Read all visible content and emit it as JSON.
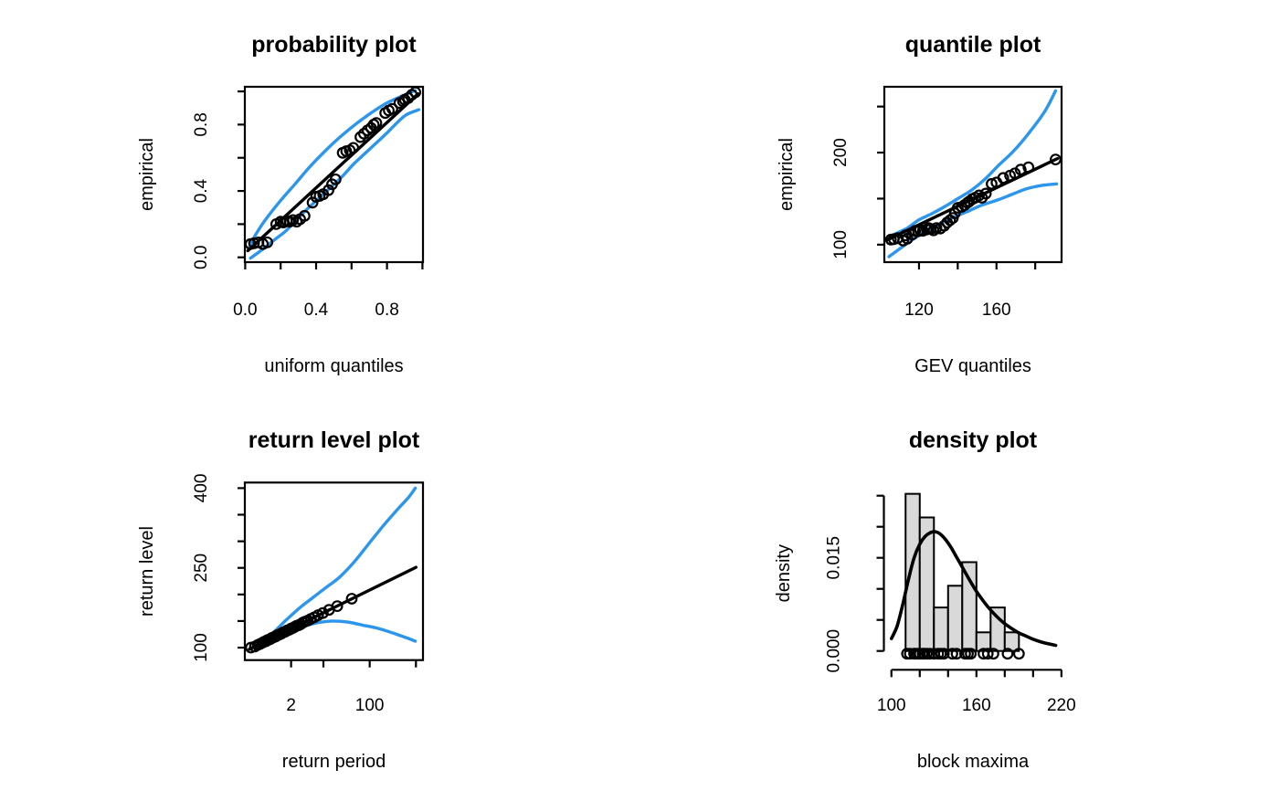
{
  "page": {
    "background": "#FFFFFF"
  },
  "styles": {
    "band_color": "#2B96EC",
    "data_color": "#000000",
    "hist_fill": "#D9D9D9",
    "hist_stroke": "#000000",
    "text_color": "#000000"
  },
  "chart_data": [
    {
      "id": "probability",
      "type": "scatter",
      "title": "probability plot",
      "xlabel": "uniform quantiles",
      "ylabel": "empirical",
      "xscale": "linear",
      "xlim": [
        -0.002,
        1.003
      ],
      "ylim": [
        -0.029,
        1.028
      ],
      "xticks": [
        [
          0,
          "0.0"
        ],
        [
          0.2,
          ""
        ],
        [
          0.4,
          "0.4"
        ],
        [
          0.6,
          ""
        ],
        [
          0.8,
          "0.8"
        ],
        [
          1,
          ""
        ]
      ],
      "yticks": [
        [
          0,
          "0.0"
        ],
        [
          0.2,
          ""
        ],
        [
          0.4,
          "0.4"
        ],
        [
          0.6,
          ""
        ],
        [
          0.8,
          "0.8"
        ],
        [
          1,
          ""
        ]
      ],
      "fit_line": [
        [
          0.015,
          0.04
        ],
        [
          0.975,
          0.985
        ]
      ],
      "upper_band": [
        [
          0.02,
          0.05
        ],
        [
          0.05,
          0.12
        ],
        [
          0.11,
          0.22
        ],
        [
          0.19,
          0.33
        ],
        [
          0.28,
          0.44
        ],
        [
          0.36,
          0.54
        ],
        [
          0.45,
          0.64
        ],
        [
          0.53,
          0.72
        ],
        [
          0.62,
          0.8
        ],
        [
          0.71,
          0.87
        ],
        [
          0.79,
          0.925
        ],
        [
          0.88,
          0.97
        ],
        [
          0.96,
          1.005
        ]
      ],
      "lower_band": [
        [
          0.03,
          -0.005
        ],
        [
          0.1,
          0.05
        ],
        [
          0.17,
          0.11
        ],
        [
          0.23,
          0.16
        ],
        [
          0.33,
          0.27
        ],
        [
          0.41,
          0.35
        ],
        [
          0.48,
          0.42
        ],
        [
          0.55,
          0.49
        ],
        [
          0.61,
          0.56
        ],
        [
          0.68,
          0.63
        ],
        [
          0.74,
          0.69
        ],
        [
          0.8,
          0.75
        ],
        [
          0.86,
          0.815
        ],
        [
          0.91,
          0.86
        ],
        [
          0.98,
          0.89
        ]
      ],
      "points": [
        [
          0.03,
          0.08
        ],
        [
          0.05,
          0.085
        ],
        [
          0.075,
          0.09
        ],
        [
          0.1,
          0.08
        ],
        [
          0.125,
          0.09
        ],
        [
          0.175,
          0.2
        ],
        [
          0.2,
          0.215
        ],
        [
          0.215,
          0.21
        ],
        [
          0.235,
          0.22
        ],
        [
          0.25,
          0.215
        ],
        [
          0.27,
          0.225
        ],
        [
          0.29,
          0.215
        ],
        [
          0.31,
          0.23
        ],
        [
          0.335,
          0.25
        ],
        [
          0.38,
          0.33
        ],
        [
          0.4,
          0.365
        ],
        [
          0.42,
          0.37
        ],
        [
          0.44,
          0.38
        ],
        [
          0.47,
          0.405
        ],
        [
          0.49,
          0.44
        ],
        [
          0.51,
          0.47
        ],
        [
          0.55,
          0.63
        ],
        [
          0.57,
          0.64
        ],
        [
          0.59,
          0.645
        ],
        [
          0.61,
          0.66
        ],
        [
          0.65,
          0.725
        ],
        [
          0.67,
          0.745
        ],
        [
          0.69,
          0.765
        ],
        [
          0.71,
          0.78
        ],
        [
          0.725,
          0.8
        ],
        [
          0.74,
          0.81
        ],
        [
          0.79,
          0.87
        ],
        [
          0.81,
          0.885
        ],
        [
          0.83,
          0.895
        ],
        [
          0.87,
          0.93
        ],
        [
          0.89,
          0.94
        ],
        [
          0.9,
          0.95
        ],
        [
          0.92,
          0.96
        ],
        [
          0.94,
          0.98
        ],
        [
          0.96,
          0.995
        ]
      ]
    },
    {
      "id": "quantile",
      "type": "scatter",
      "title": "quantile plot",
      "xlabel": "GEV quantiles",
      "ylabel": "empirical",
      "xscale": "linear",
      "xlim": [
        102.1,
        193.6
      ],
      "ylim": [
        81,
        271.5
      ],
      "xticks": [
        [
          120,
          "120"
        ],
        [
          140,
          ""
        ],
        [
          160,
          "160"
        ],
        [
          180,
          ""
        ]
      ],
      "yticks": [
        [
          100,
          "100"
        ],
        [
          150,
          ""
        ],
        [
          200,
          "200"
        ],
        [
          250,
          ""
        ]
      ],
      "fit_line": [
        [
          103.5,
          105
        ],
        [
          191.5,
          193.5
        ]
      ],
      "upper_band": [
        [
          103,
          106
        ],
        [
          108,
          112
        ],
        [
          114,
          118
        ],
        [
          120,
          127
        ],
        [
          126,
          133
        ],
        [
          133,
          141
        ],
        [
          140,
          150
        ],
        [
          147,
          159
        ],
        [
          154,
          171
        ],
        [
          161,
          186
        ],
        [
          169,
          202
        ],
        [
          177,
          222
        ],
        [
          185,
          245
        ],
        [
          190.5,
          267
        ]
      ],
      "lower_band": [
        [
          104.5,
          87
        ],
        [
          113,
          100
        ],
        [
          121,
          111.5
        ],
        [
          129,
          120.5
        ],
        [
          137,
          129
        ],
        [
          145,
          136
        ],
        [
          152.5,
          143
        ],
        [
          160.5,
          148.5
        ],
        [
          168.5,
          155
        ],
        [
          176,
          161
        ],
        [
          184,
          164.5
        ],
        [
          191,
          166
        ]
      ],
      "points": [
        [
          105.5,
          105.5
        ],
        [
          107,
          106
        ],
        [
          109,
          107
        ],
        [
          111.8,
          104.5
        ],
        [
          113,
          110
        ],
        [
          114,
          106.5
        ],
        [
          116.5,
          111
        ],
        [
          118,
          115
        ],
        [
          119.5,
          114.5
        ],
        [
          120.5,
          116
        ],
        [
          122,
          115
        ],
        [
          124,
          116.5
        ],
        [
          125,
          118
        ],
        [
          126,
          117
        ],
        [
          127.5,
          115.5
        ],
        [
          129,
          118
        ],
        [
          131,
          117.5
        ],
        [
          133,
          120.5
        ],
        [
          134.5,
          124
        ],
        [
          136,
          126.5
        ],
        [
          137.5,
          129
        ],
        [
          138.5,
          134
        ],
        [
          140,
          140
        ],
        [
          142,
          141
        ],
        [
          143.5,
          143
        ],
        [
          145,
          145.5
        ],
        [
          146,
          147
        ],
        [
          147.5,
          149.5
        ],
        [
          149,
          151
        ],
        [
          151,
          153.5
        ],
        [
          152.5,
          151
        ],
        [
          154.5,
          155.5
        ],
        [
          157.5,
          166
        ],
        [
          160,
          167.5
        ],
        [
          163.5,
          172.5
        ],
        [
          167,
          175
        ],
        [
          169.5,
          177.5
        ],
        [
          172.5,
          181.5
        ],
        [
          176.5,
          184
        ],
        [
          190.5,
          192.5
        ]
      ]
    },
    {
      "id": "return_level",
      "type": "scatter",
      "title": "return level plot",
      "xlabel": "return period",
      "ylabel": "return level",
      "xscale": "log",
      "xlim": [
        0.2,
        1420
      ],
      "ylim": [
        76.5,
        410.5
      ],
      "xticks": [
        [
          2,
          "2"
        ],
        [
          10,
          ""
        ],
        [
          100,
          "100"
        ],
        [
          1000,
          ""
        ]
      ],
      "yticks": [
        [
          100,
          "100"
        ],
        [
          150,
          ""
        ],
        [
          200,
          ""
        ],
        [
          250,
          "250"
        ],
        [
          300,
          ""
        ],
        [
          350,
          ""
        ],
        [
          400,
          "400"
        ]
      ],
      "fit_line": [
        [
          0.25,
          97
        ],
        [
          1000,
          251
        ]
      ],
      "upper_band": [
        [
          0.3,
          101
        ],
        [
          0.5,
          113
        ],
        [
          0.8,
          127
        ],
        [
          1.44,
          149
        ],
        [
          2.1,
          162
        ],
        [
          3.3,
          177
        ],
        [
          5.5,
          192
        ],
        [
          11,
          212
        ],
        [
          22,
          232
        ],
        [
          45,
          260
        ],
        [
          95,
          295
        ],
        [
          200,
          330
        ],
        [
          420,
          362
        ],
        [
          700,
          383
        ],
        [
          970,
          400
        ]
      ],
      "lower_band": [
        [
          0.34,
          95
        ],
        [
          0.7,
          110
        ],
        [
          1.3,
          121
        ],
        [
          2.1,
          130
        ],
        [
          3.3,
          139
        ],
        [
          6,
          145
        ],
        [
          9,
          148
        ],
        [
          16,
          150
        ],
        [
          34,
          148
        ],
        [
          73,
          142
        ],
        [
          155,
          136
        ],
        [
          330,
          127
        ],
        [
          700,
          117
        ],
        [
          970,
          112
        ]
      ],
      "points": [
        [
          0.27,
          100
        ],
        [
          0.33,
          102
        ],
        [
          0.38,
          105
        ],
        [
          0.43,
          107
        ],
        [
          0.48,
          109
        ],
        [
          0.52,
          111
        ],
        [
          0.57,
          112
        ],
        [
          0.61,
          114
        ],
        [
          0.66,
          115
        ],
        [
          0.71,
          116
        ],
        [
          0.76,
          118
        ],
        [
          0.81,
          119
        ],
        [
          0.87,
          120
        ],
        [
          0.93,
          121
        ],
        [
          0.99,
          123
        ],
        [
          1.06,
          124
        ],
        [
          1.14,
          125
        ],
        [
          1.22,
          126
        ],
        [
          1.3,
          128
        ],
        [
          1.39,
          129
        ],
        [
          1.5,
          130
        ],
        [
          1.61,
          132
        ],
        [
          1.73,
          133
        ],
        [
          1.87,
          134
        ],
        [
          2.02,
          136
        ],
        [
          2.19,
          137
        ],
        [
          2.4,
          139
        ],
        [
          2.63,
          141
        ],
        [
          2.89,
          142
        ],
        [
          3.2,
          144
        ],
        [
          3.58,
          147
        ],
        [
          4.03,
          149
        ],
        [
          4.61,
          151
        ],
        [
          5.33,
          154
        ],
        [
          6.33,
          157
        ],
        [
          7.68,
          161
        ],
        [
          9.71,
          165
        ],
        [
          13.2,
          171
        ],
        [
          19.9,
          178
        ],
        [
          40.9,
          192
        ]
      ]
    },
    {
      "id": "density",
      "type": "histogram",
      "title": "density plot",
      "xlabel": "block maxima",
      "ylabel": "density",
      "xscale": "linear",
      "xlim": [
        95,
        220.1
      ],
      "ylim": [
        0,
        0.025
      ],
      "xticks": [
        [
          100,
          "100"
        ],
        [
          120,
          ""
        ],
        [
          140,
          ""
        ],
        [
          160,
          "160"
        ],
        [
          180,
          ""
        ],
        [
          200,
          ""
        ],
        [
          220,
          "220"
        ]
      ],
      "yticks": [
        [
          0,
          "0.000"
        ],
        [
          0.005,
          ""
        ],
        [
          0.01,
          ""
        ],
        [
          0.015,
          "0.015"
        ],
        [
          0.02,
          ""
        ],
        [
          0.025,
          ""
        ]
      ],
      "bins": {
        "start": 110,
        "width": 10,
        "densities": [
          0.0253,
          0.0215,
          0.007,
          0.0105,
          0.0143,
          0.003,
          0.007,
          0.003
        ]
      },
      "curve": [
        [
          100,
          0.002
        ],
        [
          104,
          0.004
        ],
        [
          108,
          0.0075
        ],
        [
          112,
          0.0115
        ],
        [
          116,
          0.015
        ],
        [
          120,
          0.0172
        ],
        [
          124,
          0.0185
        ],
        [
          128,
          0.0191
        ],
        [
          131,
          0.0192
        ],
        [
          134,
          0.0189
        ],
        [
          138,
          0.018
        ],
        [
          142,
          0.0167
        ],
        [
          146,
          0.0151
        ],
        [
          150,
          0.0135
        ],
        [
          155,
          0.0115
        ],
        [
          160,
          0.0096
        ],
        [
          165,
          0.008
        ],
        [
          170,
          0.0066
        ],
        [
          175,
          0.0054
        ],
        [
          180,
          0.0044
        ],
        [
          185,
          0.0036
        ],
        [
          190,
          0.0029
        ],
        [
          195,
          0.0024
        ],
        [
          200,
          0.0019
        ],
        [
          205,
          0.0015
        ],
        [
          210,
          0.0012
        ],
        [
          216,
          0.0009
        ]
      ],
      "rug": [
        111,
        113,
        116,
        117,
        119,
        120,
        122,
        123,
        125,
        127,
        130,
        133,
        135,
        137,
        143,
        146,
        152,
        154,
        156,
        165,
        168,
        172,
        182,
        190
      ]
    }
  ]
}
